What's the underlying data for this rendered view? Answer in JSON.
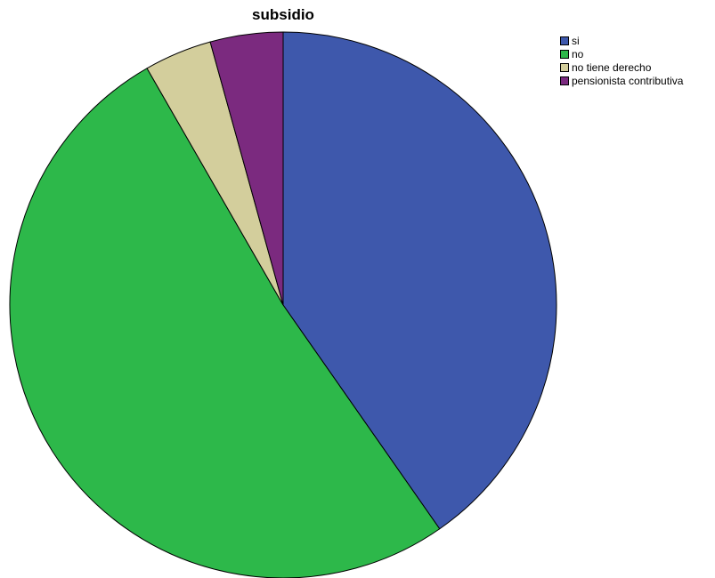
{
  "chart_data": {
    "type": "pie",
    "title": "subsidio",
    "legend_position": "top-right",
    "slices": [
      {
        "label": "si",
        "value": 40.3,
        "color": "#3e58ac"
      },
      {
        "label": "no",
        "value": 51.4,
        "color": "#2db84a"
      },
      {
        "label": "no tiene derecho",
        "value": 4.0,
        "color": "#d3ce9c"
      },
      {
        "label": "pensionista contributiva",
        "value": 4.3,
        "color": "#7b2a7f"
      }
    ]
  }
}
